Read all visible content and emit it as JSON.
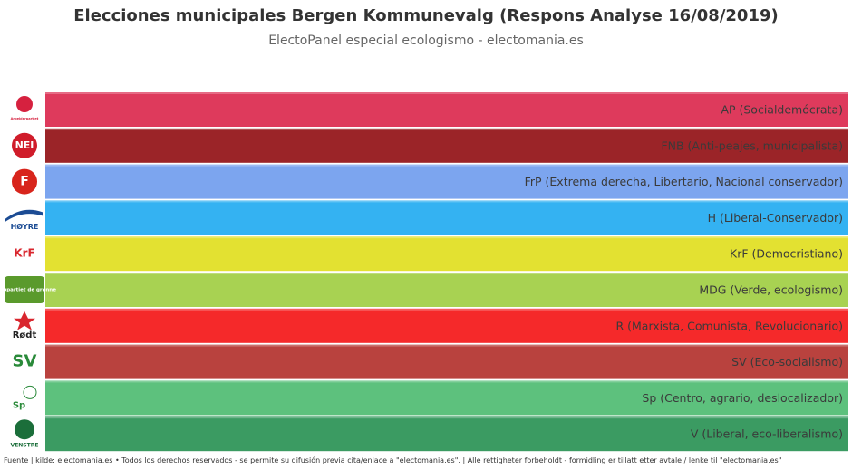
{
  "header": {
    "title": "Elecciones municipales Bergen Kommunevalg (Respons Analyse 16/08/2019)",
    "subtitle": "ElectoPanel especial ecologismo - electomania.es"
  },
  "rows": [
    {
      "label": "AP (Socialdemócrata)",
      "color": "#de3a5c",
      "logo": "Arbeiderpartiet"
    },
    {
      "label": "FNB (Anti-peajes, municipalista)",
      "color": "#9b2428",
      "logo": "NEI"
    },
    {
      "label": "FrP (Extrema derecha, Libertario, Nacional conservador)",
      "color": "#7ca5ef",
      "logo": "F"
    },
    {
      "label": "H (Liberal-Conservador)",
      "color": "#34b2f2",
      "logo": "HØYRE"
    },
    {
      "label": "KrF (Democristiano)",
      "color": "#e3e131",
      "logo": "KrF"
    },
    {
      "label": "MDG (Verde, ecologismo)",
      "color": "#a8d252",
      "logo": "miljøpartiet de grønne"
    },
    {
      "label": "R (Marxista, Comunista, Revolucionario)",
      "color": "#f5292a",
      "logo": "Rødt"
    },
    {
      "label": "SV (Eco-socialismo)",
      "color": "#b9423e",
      "logo": "SV"
    },
    {
      "label": "Sp (Centro, agrario, deslocalizador)",
      "color": "#5dc17d",
      "logo": "Sp"
    },
    {
      "label": "V (Liberal, eco-liberalismo)",
      "color": "#3b9b62",
      "logo": "VENSTRE"
    }
  ],
  "footer": {
    "prefix": "Fuente | kilde: ",
    "link": "electomania.es",
    "text": " • Todos los derechos reservados - se permite su difusión previa cita/enlace a \"electomania.es\". | Alle rettigheter forbeholdt - formidling er tillatt etter avtale / lenke til \"electomania.es\""
  }
}
